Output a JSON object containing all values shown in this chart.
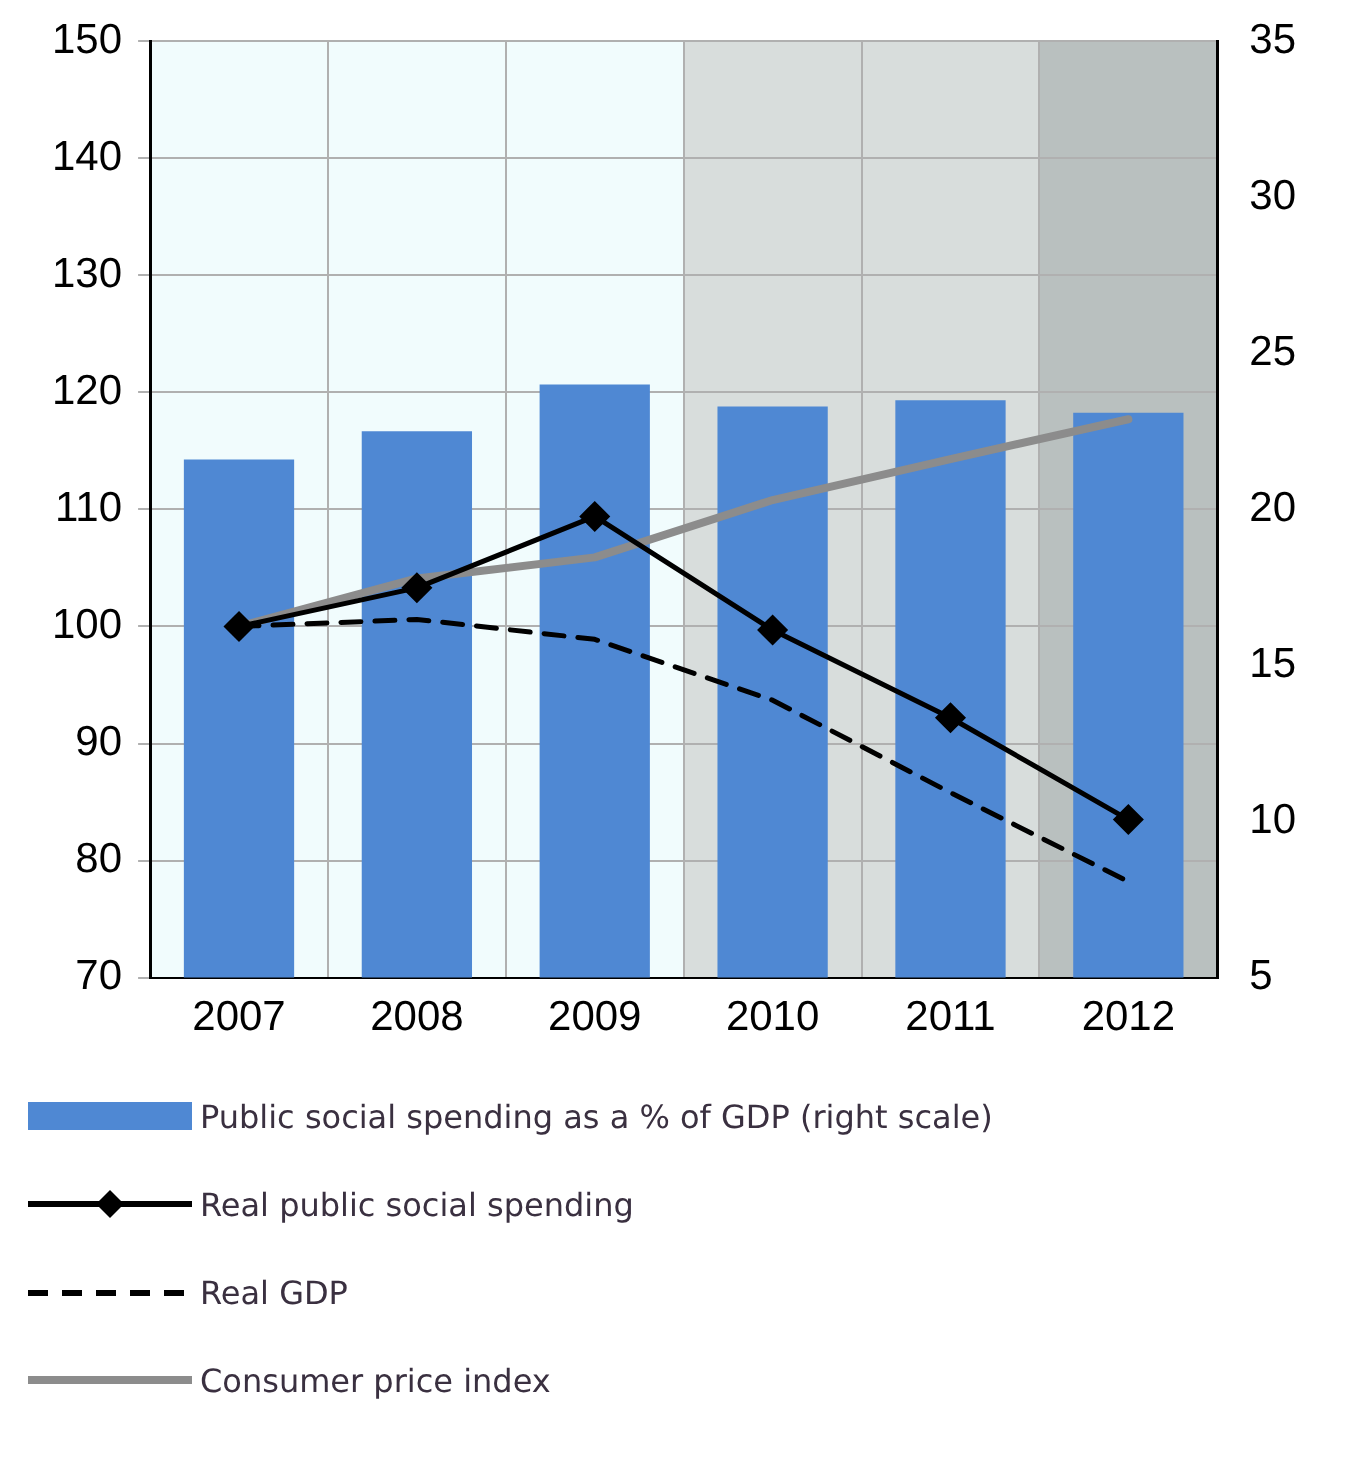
{
  "chart_data": {
    "type": "bar",
    "categories": [
      "2007",
      "2008",
      "2009",
      "2010",
      "2011",
      "2012"
    ],
    "series": [
      {
        "name": "Public social spending as a % of GDP (right scale)",
        "axis": "y2",
        "color": "#4f88d3",
        "values": [
          21.6,
          22.5,
          24.0,
          23.3,
          23.5,
          23.1
        ]
      },
      {
        "name": "Real public social spending",
        "type": "line",
        "color": "#000000",
        "marker": "diamond",
        "line_style": "solid",
        "values": [
          100,
          103.3,
          109.4,
          99.7,
          92.2,
          83.5
        ]
      },
      {
        "name": "Real GDP",
        "type": "line",
        "color": "#000000",
        "marker": "none",
        "line_style": "dashed",
        "values": [
          100,
          100.6,
          98.9,
          93.7,
          85.8,
          78.2
        ]
      },
      {
        "name": "Consumer price index",
        "type": "line",
        "color": "#8c8c8c",
        "marker": "none",
        "line_style": "solid",
        "values": [
          100,
          104.1,
          105.9,
          110.8,
          114.3,
          117.7
        ]
      }
    ],
    "ylim": [
      70,
      150
    ],
    "yticks": [
      70,
      80,
      90,
      100,
      110,
      120,
      130,
      140,
      150
    ],
    "y2lim": [
      5,
      35
    ],
    "y2ticks": [
      5,
      10,
      15,
      20,
      25,
      30,
      35
    ],
    "bands": [
      {
        "axis": "x",
        "from": "2007",
        "to": "2009",
        "color": "#f1fcfd"
      },
      {
        "axis": "x",
        "from": "2010",
        "to": "2011",
        "color": "#d8dddc"
      },
      {
        "axis": "x",
        "from": "2012",
        "to": "2012",
        "color": "#b9c0bf"
      }
    ],
    "grid": true,
    "legend": "bottom"
  }
}
